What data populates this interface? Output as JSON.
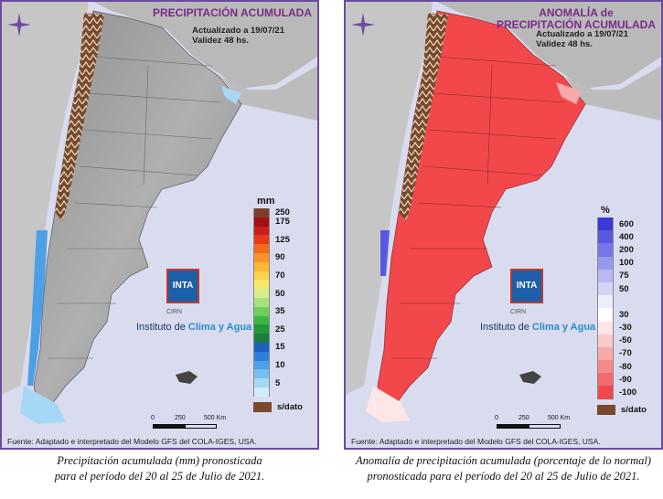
{
  "colors": {
    "frame": "#6b4aa0",
    "ocean": "#d9dcef",
    "land_neighbor": "#b9b9b9",
    "argentina_relief": "#9a9a9a",
    "anomaly_red": "#f2484b",
    "snow_brown": "#7a4a2e",
    "title_purple": "#7a2a8c"
  },
  "left_map": {
    "title": "PRECIPITACIÓN ACUMULADA",
    "updated": "Actualizado a 19/07/21",
    "validity": "Validez 48 hs.",
    "legend": {
      "unit": "mm",
      "items": [
        {
          "label": "250",
          "color": "#7b3f2a"
        },
        {
          "label": "175",
          "color": "#a01010"
        },
        {
          "label": "",
          "color": "#c81e1e"
        },
        {
          "label": "125",
          "color": "#e83a1a"
        },
        {
          "label": "",
          "color": "#f26a1e"
        },
        {
          "label": "90",
          "color": "#f8952a"
        },
        {
          "label": "",
          "color": "#fbb736"
        },
        {
          "label": "70",
          "color": "#fcd24a"
        },
        {
          "label": "",
          "color": "#fbe86a"
        },
        {
          "label": "50",
          "color": "#d7ee8a"
        },
        {
          "label": "",
          "color": "#a9e07a"
        },
        {
          "label": "35",
          "color": "#6fcf5a"
        },
        {
          "label": "",
          "color": "#3db646"
        },
        {
          "label": "25",
          "color": "#1d9a3a"
        },
        {
          "label": "",
          "color": "#1a7f3a"
        },
        {
          "label": "15",
          "color": "#1f5fbf"
        },
        {
          "label": "",
          "color": "#2f7fd8"
        },
        {
          "label": "10",
          "color": "#4da0e6"
        },
        {
          "label": "",
          "color": "#74bff0"
        },
        {
          "label": "5",
          "color": "#a6d8f6"
        },
        {
          "label": "",
          "color": "#d2ecfb"
        }
      ],
      "nodata_label": "s/dato"
    },
    "logo_text": "INTA",
    "logo_sub": "CIRN",
    "institute_prefix": "Instituto de ",
    "institute_highlight": "Clima y Agua",
    "scale_labels": [
      "0",
      "250",
      "500 Km"
    ],
    "source": "Fuente: Adaptado e interpretado del Modelo GFS del COLA-IGES, USA.",
    "caption_line1": "Precipitación acumulada (mm) pronosticada",
    "caption_line2": "para el período del 20 al 25 de Julio de 2021."
  },
  "right_map": {
    "title_line1": "ANOMALÍA de",
    "title_line2": "PRECIPITACIÓN ACUMULADA",
    "updated": "Actualizado a 19/07/21",
    "validity": "Validez 48 hs.",
    "legend": {
      "unit": "%",
      "items": [
        {
          "label": "600",
          "color": "#3a3ad8"
        },
        {
          "label": "400",
          "color": "#5858e0"
        },
        {
          "label": "200",
          "color": "#7676e6"
        },
        {
          "label": "100",
          "color": "#9898ec"
        },
        {
          "label": "75",
          "color": "#b8b8f2"
        },
        {
          "label": "50",
          "color": "#d4d4f6"
        },
        {
          "label": "",
          "color": "#eeeefb"
        },
        {
          "label": "30",
          "color": "#ffffff"
        },
        {
          "label": "-30",
          "color": "#fde6e6"
        },
        {
          "label": "-50",
          "color": "#fbcaca"
        },
        {
          "label": "-70",
          "color": "#f8aaaa"
        },
        {
          "label": "-80",
          "color": "#f68a8a"
        },
        {
          "label": "-90",
          "color": "#f46a6a"
        },
        {
          "label": "-100",
          "color": "#f2484b"
        }
      ],
      "nodata_label": "s/dato"
    },
    "logo_text": "INTA",
    "logo_sub": "CIRN",
    "institute_prefix": "Instituto de ",
    "institute_highlight": "Clima y Agua",
    "scale_labels": [
      "0",
      "250",
      "500 Km"
    ],
    "source": "Fuente: Adaptado e interpretado del Modelo GFS del COLA-IGES, USA.",
    "caption_line1": "Anomalía de precipitación acumulada (porcentaje de lo normal)",
    "caption_line2": "pronosticada para el período del 20 al 25 de Julio de 2021."
  }
}
